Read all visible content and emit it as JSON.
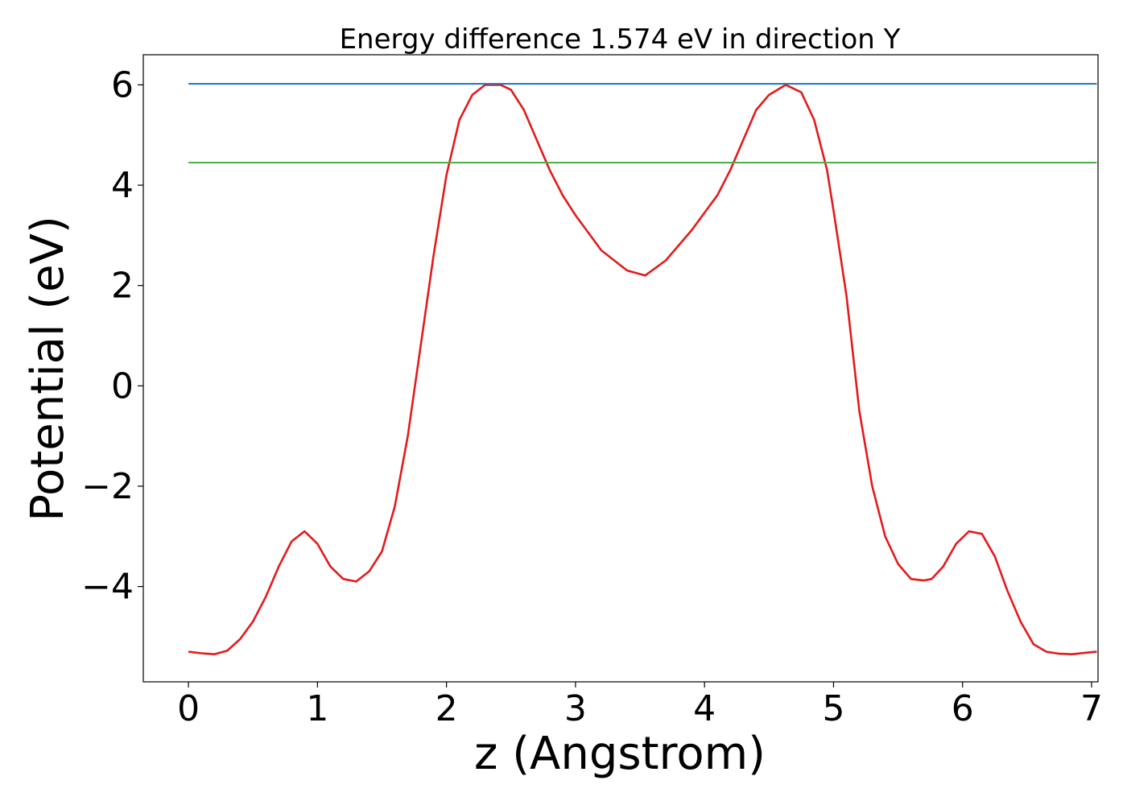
{
  "chart_data": {
    "type": "line",
    "title": "Energy difference 1.574 eV in direction Y",
    "xlabel": "z (Angstrom)",
    "ylabel": "Potential (eV)",
    "xlim": [
      -0.35,
      7.05
    ],
    "ylim": [
      -5.9,
      6.6
    ],
    "x_ticks": [
      0,
      1,
      2,
      3,
      4,
      5,
      6,
      7
    ],
    "x_tick_labels": [
      "0",
      "1",
      "2",
      "3",
      "4",
      "5",
      "6",
      "7"
    ],
    "y_ticks": [
      -4,
      -2,
      0,
      2,
      4,
      6
    ],
    "y_tick_labels": [
      "−4",
      "−2",
      "0",
      "2",
      "4",
      "6"
    ],
    "grid": false,
    "series": [
      {
        "color": "#e31a1c",
        "x": [
          0.0,
          0.1,
          0.2,
          0.3,
          0.4,
          0.5,
          0.6,
          0.7,
          0.8,
          0.9,
          1.0,
          1.1,
          1.2,
          1.3,
          1.4,
          1.5,
          1.6,
          1.7,
          1.8,
          1.9,
          2.0,
          2.1,
          2.2,
          2.3,
          2.42,
          2.5,
          2.6,
          2.7,
          2.8,
          2.9,
          3.0,
          3.2,
          3.4,
          3.54,
          3.7,
          3.9,
          4.1,
          4.2,
          4.3,
          4.4,
          4.5,
          4.63,
          4.75,
          4.85,
          4.95,
          5.0,
          5.1,
          5.2,
          5.3,
          5.4,
          5.5,
          5.6,
          5.7,
          5.76,
          5.85,
          5.95,
          6.05,
          6.15,
          6.25,
          6.35,
          6.45,
          6.55,
          6.65,
          6.75,
          6.85,
          6.95,
          7.04
        ],
        "y": [
          -5.3,
          -5.33,
          -5.35,
          -5.28,
          -5.05,
          -4.7,
          -4.2,
          -3.6,
          -3.1,
          -2.9,
          -3.15,
          -3.6,
          -3.85,
          -3.9,
          -3.7,
          -3.3,
          -2.4,
          -1.0,
          0.8,
          2.6,
          4.2,
          5.3,
          5.8,
          6.0,
          6.0,
          5.9,
          5.5,
          4.9,
          4.3,
          3.8,
          3.4,
          2.7,
          2.3,
          2.2,
          2.5,
          3.1,
          3.8,
          4.3,
          4.9,
          5.5,
          5.8,
          6.0,
          5.85,
          5.3,
          4.3,
          3.5,
          1.8,
          -0.5,
          -2.0,
          -3.0,
          -3.55,
          -3.85,
          -3.88,
          -3.85,
          -3.6,
          -3.15,
          -2.9,
          -2.95,
          -3.4,
          -4.1,
          -4.7,
          -5.15,
          -5.3,
          -5.34,
          -5.35,
          -5.32,
          -5.3
        ]
      },
      {
        "color": "#1f77b4",
        "x": [
          0.0,
          7.04
        ],
        "y": [
          6.02,
          6.02
        ]
      },
      {
        "color": "#4daf4a",
        "x": [
          0.0,
          7.04
        ],
        "y": [
          4.45,
          4.45
        ]
      }
    ]
  }
}
